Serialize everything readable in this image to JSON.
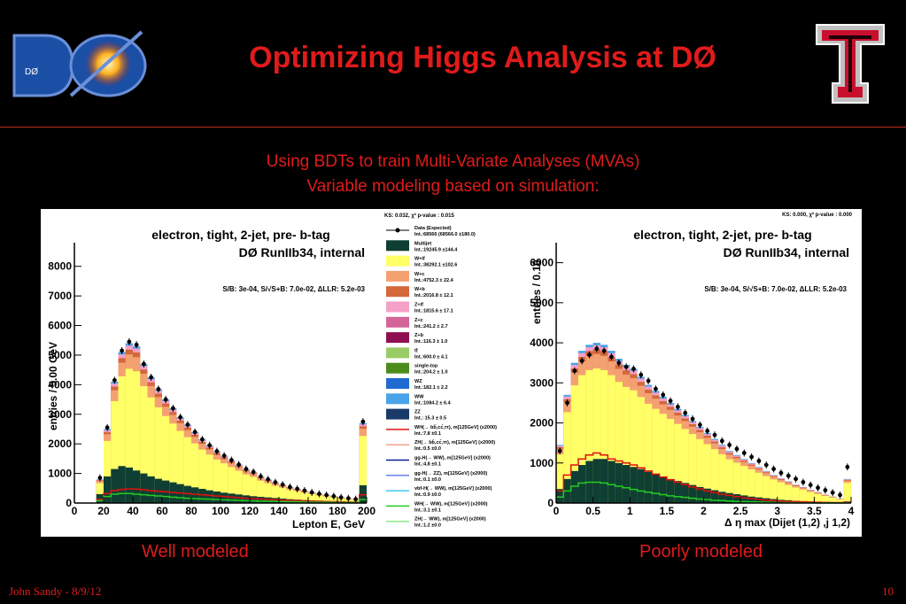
{
  "slide": {
    "title": "Optimizing Higgs Analysis at DØ",
    "subtitle1": "Using BDTs to train Multi-Variate Analyses (MVAs)",
    "subtitle2": "Variable modeling based on simulation:",
    "caption_left": "Well modeled",
    "caption_right": "Poorly modeled",
    "footer_left": "John Sandy - 8/9/12",
    "footer_right": "10",
    "logo_left": "DØ",
    "logo_right": "T"
  },
  "chart_data": [
    {
      "type": "bar",
      "title": "electron, tight, 2-jet, pre- b-tag",
      "subtitle": "DØ RunIIb34, internal",
      "annotation": "S/B: 3e-04, S/√S+B: 7.0e-02, ΔLLR: 5.2e-03",
      "stats": "KS: 0.032,  χ² p-value : 0.015",
      "xlabel": "Lepton E, GeV",
      "ylabel": "entries / 5.00 GeV",
      "xlim": [
        0,
        200
      ],
      "ylim": [
        0,
        8800
      ],
      "xticks": [
        "0",
        "20",
        "40",
        "60",
        "80",
        "100",
        "120",
        "140",
        "160",
        "180",
        "200"
      ],
      "yticks": [
        "0",
        "1000",
        "2000",
        "3000",
        "4000",
        "5000",
        "6000",
        "7000",
        "8000"
      ],
      "x": [
        17.5,
        22.5,
        27.5,
        32.5,
        37.5,
        42.5,
        47.5,
        52.5,
        57.5,
        62.5,
        67.5,
        72.5,
        77.5,
        82.5,
        87.5,
        92.5,
        97.5,
        102.5,
        107.5,
        112.5,
        117.5,
        122.5,
        127.5,
        132.5,
        137.5,
        142.5,
        147.5,
        152.5,
        157.5,
        162.5,
        167.5,
        172.5,
        177.5,
        182.5,
        187.5,
        192.5,
        197.5
      ],
      "data": [
        850,
        2550,
        4150,
        5150,
        5450,
        5350,
        4700,
        4250,
        3850,
        3500,
        3200,
        2900,
        2650,
        2400,
        2150,
        1950,
        1750,
        1600,
        1450,
        1300,
        1150,
        1050,
        900,
        800,
        700,
        620,
        540,
        480,
        420,
        360,
        310,
        270,
        230,
        190,
        160,
        130,
        2750
      ],
      "total": [
        800,
        2500,
        4100,
        5100,
        5400,
        5300,
        4700,
        4250,
        3850,
        3500,
        3200,
        2900,
        2650,
        2400,
        2150,
        1950,
        1750,
        1600,
        1450,
        1300,
        1150,
        1050,
        900,
        800,
        700,
        620,
        540,
        480,
        420,
        360,
        310,
        270,
        230,
        190,
        160,
        130,
        2700
      ],
      "multijet": [
        300,
        900,
        1150,
        1250,
        1200,
        1100,
        1000,
        900,
        820,
        760,
        700,
        640,
        580,
        530,
        480,
        430,
        390,
        350,
        320,
        290,
        260,
        230,
        210,
        190,
        170,
        150,
        130,
        115,
        100,
        90,
        80,
        70,
        60,
        50,
        45,
        40,
        600
      ],
      "signal_red": [
        120,
        320,
        420,
        460,
        480,
        470,
        450,
        420,
        400,
        380,
        360,
        340,
        320,
        300,
        280,
        260,
        240,
        220,
        200,
        180,
        160,
        150,
        140,
        120,
        110,
        100,
        90,
        80,
        70,
        60,
        55,
        50,
        45,
        40,
        35,
        30,
        280
      ],
      "signal_green": [
        80,
        220,
        300,
        320,
        320,
        300,
        280,
        260,
        240,
        220,
        200,
        180,
        160,
        150,
        140,
        130,
        120,
        110,
        100,
        90,
        80,
        70,
        65,
        60,
        55,
        50,
        45,
        40,
        35,
        30,
        28,
        25,
        22,
        20,
        18,
        15,
        120
      ]
    },
    {
      "type": "bar",
      "title": "electron, tight, 2-jet, pre- b-tag",
      "subtitle": "DØ RunIIb34, internal",
      "annotation": "S/B: 3e-04, S/√S+B: 7.0e-02, ΔLLR: 5.2e-03",
      "stats": "KS: 0.000,  χ² p-value : 0.000",
      "xlabel": "Δ η max (Dijet (1,2) ,j 1,2)",
      "ylabel": "entries / 0.10",
      "xlim": [
        0,
        4
      ],
      "ylim": [
        0,
        6500
      ],
      "xticks": [
        "0",
        "0.5",
        "1",
        "1.5",
        "2",
        "2.5",
        "3",
        "3.5",
        "4"
      ],
      "yticks": [
        "0",
        "1000",
        "2000",
        "3000",
        "4000",
        "5000",
        "6000"
      ],
      "x": [
        0.05,
        0.15,
        0.25,
        0.35,
        0.45,
        0.55,
        0.65,
        0.75,
        0.85,
        0.95,
        1.05,
        1.15,
        1.25,
        1.35,
        1.45,
        1.55,
        1.65,
        1.75,
        1.85,
        1.95,
        2.05,
        2.15,
        2.25,
        2.35,
        2.45,
        2.55,
        2.65,
        2.75,
        2.85,
        2.95,
        3.05,
        3.15,
        3.25,
        3.35,
        3.45,
        3.55,
        3.65,
        3.75,
        3.85,
        3.95
      ],
      "data": [
        1300,
        2500,
        3300,
        3550,
        3700,
        3850,
        3800,
        3650,
        3500,
        3400,
        3350,
        3200,
        3050,
        2850,
        2700,
        2550,
        2400,
        2250,
        2100,
        1950,
        1800,
        1700,
        1550,
        1450,
        1350,
        1250,
        1150,
        1050,
        950,
        850,
        750,
        680,
        600,
        520,
        450,
        380,
        320,
        260,
        200,
        900
      ],
      "total": [
        1450,
        2700,
        3500,
        3800,
        3950,
        4000,
        3950,
        3800,
        3600,
        3450,
        3350,
        3150,
        2950,
        2800,
        2650,
        2500,
        2350,
        2200,
        2050,
        1900,
        1750,
        1600,
        1450,
        1300,
        1200,
        1100,
        1000,
        900,
        800,
        700,
        620,
        540,
        460,
        400,
        330,
        270,
        210,
        160,
        110,
        600
      ],
      "multijet": [
        350,
        600,
        800,
        950,
        1050,
        1100,
        1100,
        1050,
        1000,
        950,
        900,
        850,
        780,
        720,
        650,
        600,
        550,
        500,
        450,
        400,
        360,
        320,
        280,
        250,
        220,
        190,
        160,
        140,
        120,
        100,
        80,
        70,
        55,
        45,
        35,
        25,
        20,
        15,
        10,
        40
      ],
      "signal_red": [
        300,
        700,
        950,
        1100,
        1200,
        1250,
        1200,
        1100,
        1050,
        1000,
        950,
        880,
        800,
        720,
        650,
        580,
        520,
        460,
        400,
        350,
        300,
        260,
        220,
        190,
        160,
        130,
        110,
        90,
        70,
        60,
        50,
        40,
        35,
        30,
        25,
        20,
        15,
        12,
        10,
        20
      ],
      "signal_green": [
        150,
        300,
        420,
        500,
        520,
        520,
        500,
        460,
        420,
        380,
        340,
        300,
        270,
        240,
        210,
        180,
        160,
        140,
        120,
        100,
        85,
        70,
        60,
        50,
        40,
        35,
        30,
        25,
        20,
        15,
        12,
        10,
        8,
        6,
        5,
        4,
        3,
        2,
        2,
        5
      ]
    }
  ],
  "legend": {
    "entries": [
      {
        "label": "Data (Expected)",
        "sub": "Int.:68566 (68566.0   ±180.0)",
        "color": "#000000",
        "kind": "data"
      },
      {
        "label": "Multijet",
        "sub": "Int.:19245.9 ±144.4",
        "color": "#0f3f32",
        "kind": "box"
      },
      {
        "label": "W+lf",
        "sub": "Int.:38292.1 ±102.6",
        "color": "#ffff66",
        "kind": "box"
      },
      {
        "label": "W+c",
        "sub": "Int.:4752.3 ± 22.4",
        "color": "#f4a172",
        "kind": "box"
      },
      {
        "label": "W+b",
        "sub": "Int.:2016.8 ± 12.1",
        "color": "#d4683a",
        "kind": "box"
      },
      {
        "label": "Z+lf",
        "sub": "Int.:1815.6 ± 17.1",
        "color": "#f5a0c8",
        "kind": "box"
      },
      {
        "label": "Z+c",
        "sub": "Int.:241.2 ±  2.7",
        "color": "#d36598",
        "kind": "box"
      },
      {
        "label": "Z+b",
        "sub": "Int.:116.3 ±  1.0",
        "color": "#8e1052",
        "kind": "box"
      },
      {
        "label": "tt̄",
        "sub": "Int.:600.0 ±  4.1",
        "color": "#99cc66",
        "kind": "box"
      },
      {
        "label": "single-top",
        "sub": "Int.:204.2 ±  1.0",
        "color": "#4c8c1c",
        "kind": "box"
      },
      {
        "label": "WZ",
        "sub": "Int.:182.1 ±  2.2",
        "color": "#1f6bd1",
        "kind": "box"
      },
      {
        "label": "WW",
        "sub": "Int.:1084.2 ±  6.4",
        "color": "#4aa3e8",
        "kind": "box"
      },
      {
        "label": "ZZ",
        "sub": "Int.: 15.3 ±  0.5",
        "color": "#1a3a6a",
        "kind": "box"
      },
      {
        "label": "WH(→ bb̄,cc̄,ττ), m[125GeV] (x2000)",
        "sub": "Int.:7.8 ±0.1",
        "color": "#e01010",
        "kind": "line"
      },
      {
        "label": "ZH(→ bb̄,cc̄,ττ), m[125GeV] (x2000)",
        "sub": "Int.:0.5 ±0.0",
        "color": "#f4a090",
        "kind": "line"
      },
      {
        "label": "gg-H(→ WW), m[125GeV] (x2000)",
        "sub": "Int.:4.8 ±0.1",
        "color": "#10209a",
        "kind": "line"
      },
      {
        "label": "gg-H(→ ZZ), m[125GeV] (x2000)",
        "sub": "Int.:0.1 ±0.0",
        "color": "#6680ee",
        "kind": "line"
      },
      {
        "label": "vbf-H(→ WW), m[125GeV] (x2000)",
        "sub": "Int.:0.9 ±0.0",
        "color": "#40c8f0",
        "kind": "line"
      },
      {
        "label": "WH(→ WW), m[125GeV] (x2000)",
        "sub": "Int.:3.1 ±0.1",
        "color": "#22cc22",
        "kind": "line"
      },
      {
        "label": "ZH(→ WW), m[125GeV] (x2000)",
        "sub": "Int.:1.2 ±0.0",
        "color": "#88ee88",
        "kind": "line"
      }
    ]
  },
  "colors": {
    "title_red": "#e01b1b",
    "wlf_yellow": "#ffff66",
    "multijet": "#0f3f32"
  }
}
